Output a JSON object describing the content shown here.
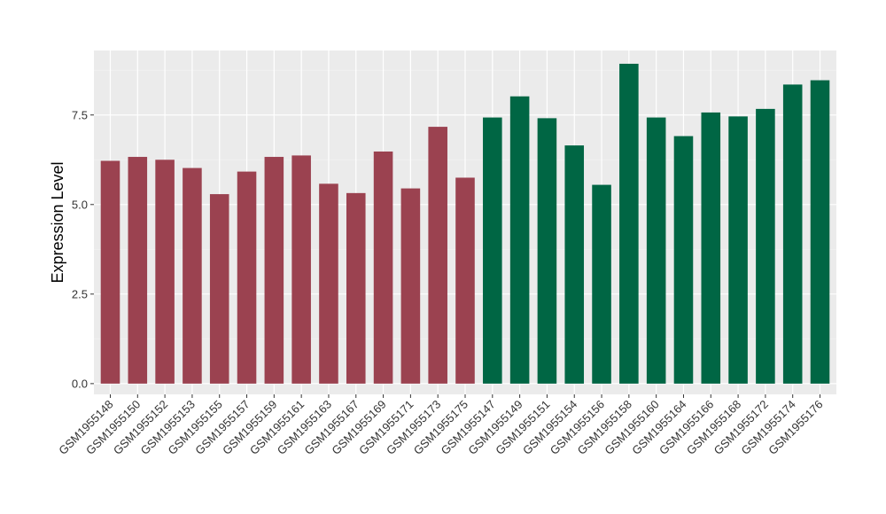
{
  "chart_data": {
    "type": "bar",
    "ylabel": "Expression Level",
    "xlabel": "",
    "ylim": [
      -0.3,
      9.3
    ],
    "yticks": [
      0.0,
      2.5,
      5.0,
      7.5
    ],
    "ytick_labels": [
      "0.0",
      "2.5",
      "5.0",
      "7.5"
    ],
    "grid": true,
    "legend": "none",
    "background": "#EBEBEB",
    "categories": [
      "GSM1955148",
      "GSM1955150",
      "GSM1955152",
      "GSM1955153",
      "GSM1955155",
      "GSM1955157",
      "GSM1955159",
      "GSM1955161",
      "GSM1955163",
      "GSM1955167",
      "GSM1955169",
      "GSM1955171",
      "GSM1955173",
      "GSM1955175",
      "GSM1955147",
      "GSM1955149",
      "GSM1955151",
      "GSM1955154",
      "GSM1955156",
      "GSM1955158",
      "GSM1955160",
      "GSM1955164",
      "GSM1955166",
      "GSM1955168",
      "GSM1955172",
      "GSM1955174",
      "GSM1955176"
    ],
    "values": [
      6.22,
      6.33,
      6.25,
      6.02,
      5.29,
      5.92,
      6.33,
      6.37,
      5.58,
      5.32,
      6.48,
      5.45,
      7.17,
      5.75,
      7.43,
      8.02,
      7.41,
      6.65,
      5.55,
      8.93,
      7.43,
      6.91,
      7.57,
      7.46,
      7.67,
      8.35,
      8.47
    ],
    "group_of_bar": [
      0,
      0,
      0,
      0,
      0,
      0,
      0,
      0,
      0,
      0,
      0,
      0,
      0,
      0,
      1,
      1,
      1,
      1,
      1,
      1,
      1,
      1,
      1,
      1,
      1,
      1,
      1
    ],
    "group_colors": [
      "#9B4250",
      "#006644"
    ]
  }
}
